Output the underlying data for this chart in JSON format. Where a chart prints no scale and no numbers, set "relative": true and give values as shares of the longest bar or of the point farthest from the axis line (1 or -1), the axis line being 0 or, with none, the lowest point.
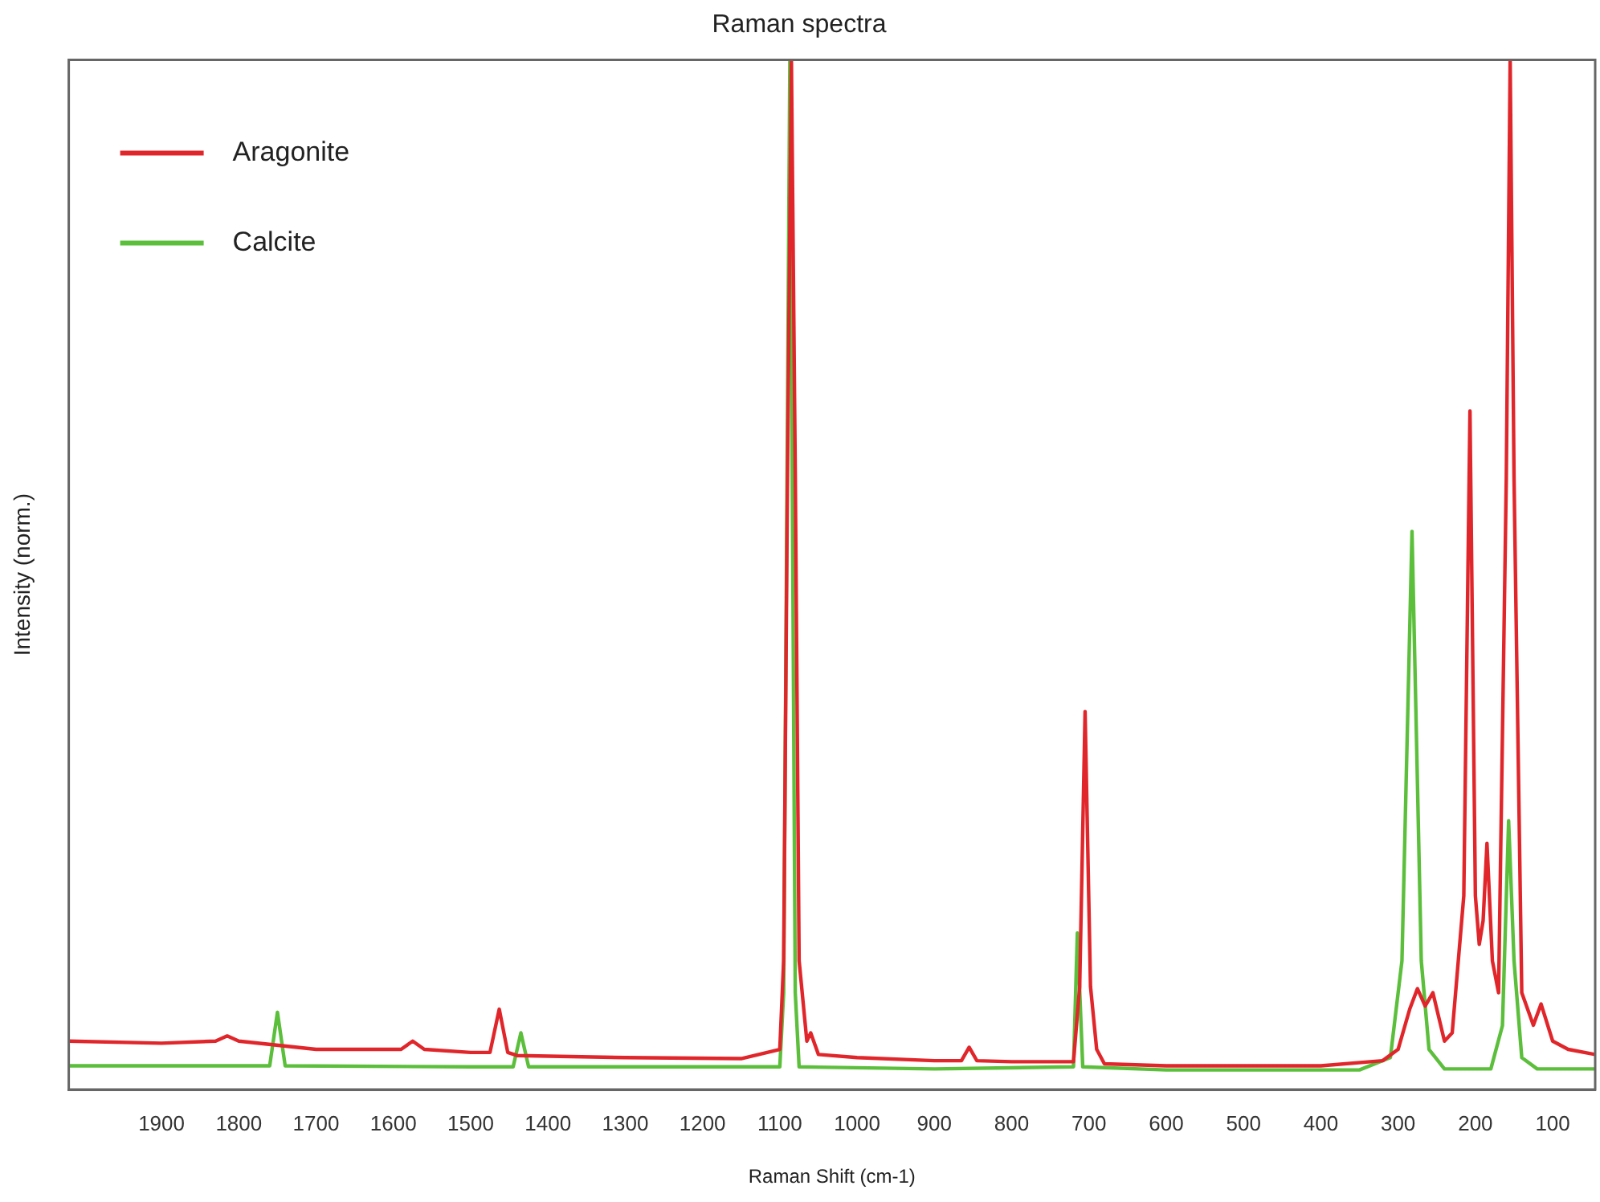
{
  "chart_data": {
    "type": "line",
    "title": "Raman spectra",
    "xlabel": "Raman Shift (cm-1)",
    "ylabel": "Intensity (norm.)",
    "relative": true,
    "legend": "top left",
    "grid": false,
    "marker": "none",
    "line_style": "solid",
    "xlim": [
      2020,
      45
    ],
    "xticks": [
      1900,
      1800,
      1700,
      1600,
      1500,
      1400,
      1300,
      1200,
      1100,
      1000,
      900,
      800,
      700,
      600,
      500,
      400,
      300,
      200,
      100
    ],
    "series": [
      {
        "name": "Aragonite",
        "color": "#e0262a",
        "x": [
          2020,
          1900,
          1830,
          1815,
          1800,
          1700,
          1590,
          1575,
          1560,
          1500,
          1475,
          1463,
          1452,
          1440,
          1300,
          1150,
          1100,
          1095,
          1090,
          1085,
          1080,
          1075,
          1065,
          1060,
          1050,
          1000,
          900,
          865,
          855,
          845,
          800,
          720,
          712,
          705,
          698,
          690,
          680,
          600,
          400,
          320,
          300,
          285,
          275,
          265,
          255,
          240,
          230,
          215,
          207,
          200,
          195,
          190,
          185,
          178,
          170,
          160,
          155,
          150,
          140,
          125,
          115,
          100,
          80,
          45
        ],
        "values": [
          0.047,
          0.045,
          0.047,
          0.052,
          0.047,
          0.039,
          0.039,
          0.047,
          0.039,
          0.036,
          0.036,
          0.078,
          0.036,
          0.033,
          0.031,
          0.03,
          0.039,
          0.125,
          0.6,
          1.0,
          0.6,
          0.125,
          0.047,
          0.055,
          0.034,
          0.031,
          0.028,
          0.028,
          0.041,
          0.028,
          0.027,
          0.027,
          0.1,
          0.367,
          0.1,
          0.039,
          0.025,
          0.023,
          0.023,
          0.028,
          0.039,
          0.078,
          0.098,
          0.081,
          0.094,
          0.047,
          0.055,
          0.188,
          0.659,
          0.188,
          0.141,
          0.164,
          0.239,
          0.125,
          0.094,
          0.594,
          1.0,
          0.594,
          0.094,
          0.0625,
          0.083,
          0.047,
          0.039,
          0.034
        ]
      },
      {
        "name": "Calcite",
        "color": "#5cbf3c",
        "x": [
          2020,
          1900,
          1760,
          1750,
          1740,
          1500,
          1445,
          1435,
          1425,
          1100,
          1095,
          1087,
          1080,
          1075,
          900,
          720,
          715,
          708,
          600,
          350,
          310,
          295,
          282,
          270,
          260,
          240,
          180,
          165,
          157,
          150,
          140,
          120,
          45
        ],
        "values": [
          0.023,
          0.023,
          0.023,
          0.075,
          0.023,
          0.022,
          0.022,
          0.055,
          0.022,
          0.022,
          0.094,
          1.0,
          0.094,
          0.022,
          0.02,
          0.022,
          0.152,
          0.022,
          0.019,
          0.019,
          0.031,
          0.125,
          0.542,
          0.125,
          0.039,
          0.02,
          0.02,
          0.062,
          0.261,
          0.125,
          0.031,
          0.02,
          0.02
        ]
      }
    ]
  }
}
